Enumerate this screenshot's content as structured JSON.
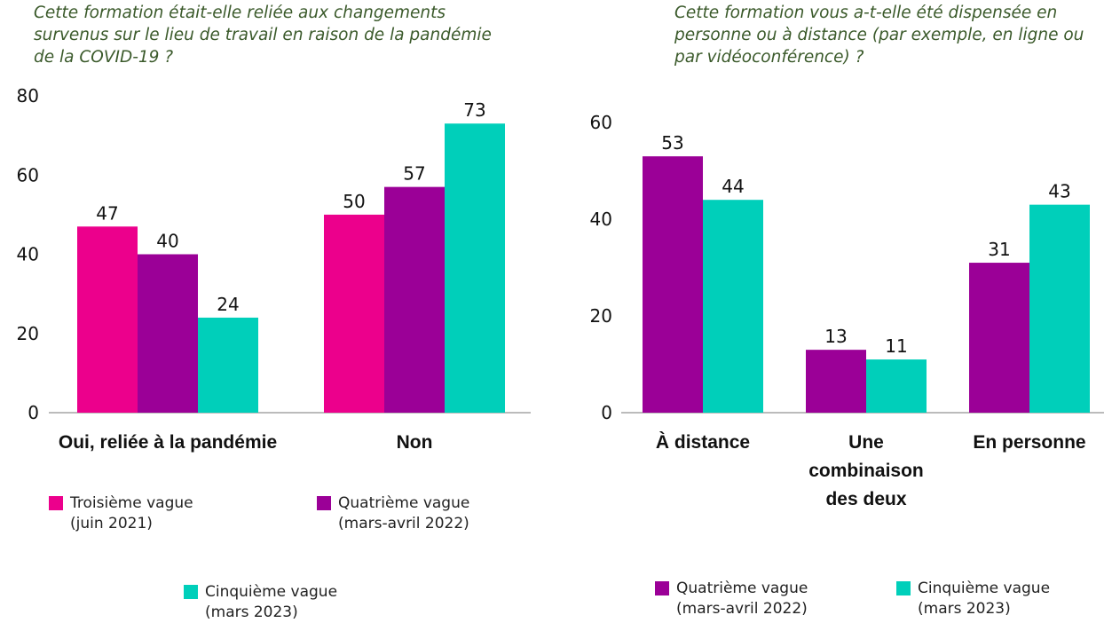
{
  "chart_data": [
    {
      "type": "bar",
      "title": "Cette formation était-elle reliée aux changements survenus sur le lieu de travail en raison de la pandémie de la COVID-19 ?",
      "categories": [
        "Oui, reliée à la pandémie",
        "Non"
      ],
      "series": [
        {
          "name": "Troisième vague (juin 2021)",
          "color": "#ec008c",
          "values": [
            47,
            50
          ]
        },
        {
          "name": "Quatrième vague (mars-avril 2022)",
          "color": "#9b0097",
          "values": [
            40,
            57
          ]
        },
        {
          "name": "Cinquième vague (mars 2023)",
          "color": "#00cfba",
          "values": [
            24,
            73
          ]
        }
      ],
      "ylim": [
        0,
        80
      ],
      "yticks": [
        0,
        20,
        40,
        60,
        80
      ]
    },
    {
      "type": "bar",
      "title": "Cette formation vous a-t-elle été dispensée en personne ou à distance (par exemple, en ligne ou par vidéoconférence) ?",
      "categories": [
        "À distance",
        "Une combinaison des deux",
        "En personne"
      ],
      "series": [
        {
          "name": "Quatrième vague (mars-avril 2022)",
          "color": "#9b0097",
          "values": [
            53,
            13,
            31
          ]
        },
        {
          "name": "Cinquième vague (mars 2023)",
          "color": "#00cfba",
          "values": [
            44,
            11,
            43
          ]
        }
      ],
      "ylim": [
        0,
        60
      ],
      "yticks": [
        0,
        20,
        40,
        60
      ]
    }
  ]
}
